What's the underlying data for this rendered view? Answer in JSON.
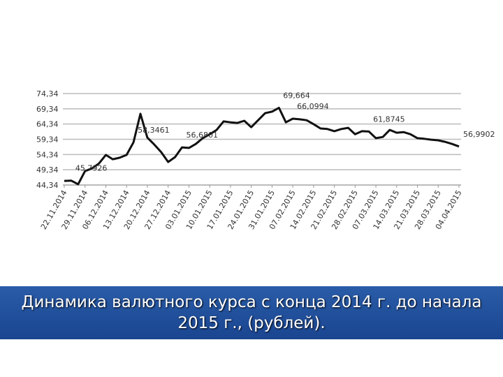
{
  "chart_data": {
    "type": "line",
    "title": "Динамика валютного курса с конца 2014 г. до начала 2015 г., (рублей).",
    "categories": [
      "22.11.2014",
      null,
      null,
      "29.11.2014",
      null,
      null,
      "06.12.2014",
      null,
      null,
      "13.12.2014",
      null,
      null,
      "20.12.2014",
      null,
      null,
      "27.12.2014",
      null,
      null,
      "03.01.2015",
      null,
      null,
      "10.01.2015",
      null,
      null,
      "17.01.2015",
      null,
      null,
      "24.01.2015",
      null,
      null,
      "31.01.2015",
      null,
      null,
      "07.02.2015",
      null,
      null,
      "14.02.2015",
      null,
      null,
      "21.02.2015",
      null,
      null,
      "28.02.2015",
      null,
      null,
      "07.03.2015",
      null,
      null,
      "14.03.2015",
      null,
      null,
      "21.03.2015",
      null,
      null,
      "28.03.2015",
      null,
      null,
      "04.04.2015"
    ],
    "values": [
      45.7,
      45.7926,
      44.6,
      48.9,
      49.8,
      51.4,
      54.2,
      52.8,
      53.3,
      54.2,
      58.3461,
      67.7,
      59.9,
      57.6,
      55.1,
      51.9,
      53.5,
      56.6801,
      56.5,
      57.8,
      59.7,
      61.0,
      62.4,
      65.2,
      64.9,
      64.7,
      65.4,
      63.3,
      65.6,
      67.9,
      68.4,
      69.664,
      64.9,
      66.0994,
      65.9,
      65.6,
      64.3,
      62.9,
      62.7,
      62.0,
      62.7,
      63.1,
      61.0,
      62.0,
      61.8745,
      59.7,
      60.1,
      62.4,
      61.5,
      61.7,
      61.0,
      59.7,
      59.5,
      59.2,
      59.0,
      58.5,
      57.8,
      56.9902
    ],
    "value_labels": [
      null,
      "45,7926",
      null,
      null,
      null,
      null,
      null,
      null,
      null,
      null,
      "58,3461",
      null,
      null,
      null,
      null,
      null,
      null,
      "56,6801",
      null,
      null,
      null,
      null,
      null,
      null,
      null,
      null,
      null,
      null,
      null,
      null,
      null,
      "69,664",
      null,
      "66,0994",
      null,
      null,
      null,
      null,
      null,
      null,
      null,
      null,
      null,
      null,
      "61,8745",
      null,
      null,
      null,
      null,
      null,
      null,
      null,
      null,
      null,
      null,
      null,
      null,
      "56,9902"
    ],
    "color": "#111111",
    "ylim": [
      44.34,
      74.34
    ],
    "yticks": [
      {
        "value": 44.34,
        "label": "44,34"
      },
      {
        "value": 49.34,
        "label": "49,34"
      },
      {
        "value": 54.34,
        "label": "54,34"
      },
      {
        "value": 59.34,
        "label": "59,34"
      },
      {
        "value": 64.34,
        "label": "64,34"
      },
      {
        "value": 69.34,
        "label": "69,34"
      },
      {
        "value": 74.34,
        "label": "74,34"
      }
    ],
    "grid": true
  }
}
